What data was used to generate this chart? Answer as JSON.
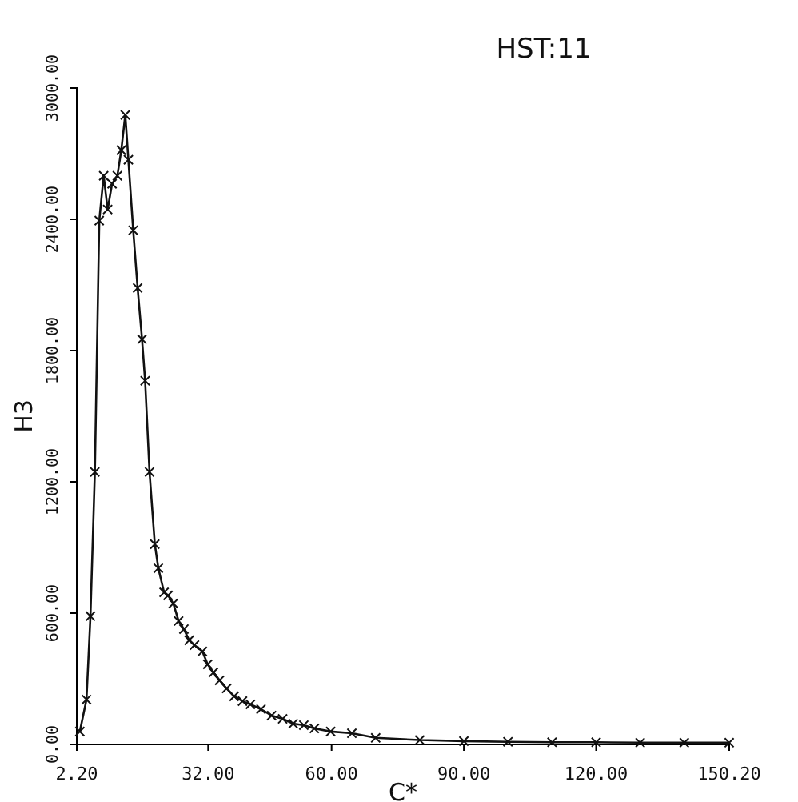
{
  "chart_data": {
    "type": "line",
    "title": "HST:11",
    "xlabel": "C*",
    "ylabel": "H3",
    "x": [
      2.9,
      4.4,
      5.3,
      6.3,
      7.3,
      8.3,
      9.2,
      10.2,
      11.4,
      12.3,
      13.2,
      13.9,
      15.0,
      16.0,
      17.0,
      17.7,
      18.7,
      19.9,
      20.7,
      22.0,
      22.9,
      24.1,
      25.3,
      26.5,
      27.7,
      28.9,
      30.7,
      31.9,
      33.2,
      34.6,
      36.2,
      37.9,
      39.8,
      41.6,
      44.0,
      46.4,
      48.9,
      51.3,
      53.7,
      56.1,
      59.8,
      64.6,
      70,
      80,
      90,
      100,
      110,
      120,
      130,
      140,
      150.2
    ],
    "series": [
      {
        "color": "#111111",
        "values": [
          59,
          205,
          586,
          1245,
          2394,
          2599,
          2445,
          2562,
          2599,
          2716,
          2877,
          2672,
          2350,
          2086,
          1852,
          1662,
          1245,
          915,
          805,
          695,
          681,
          644,
          564,
          527,
          476,
          454,
          425,
          366,
          329,
          293,
          256,
          220,
          198,
          183,
          161,
          132,
          117,
          95,
          88,
          73,
          59,
          51,
          30,
          20,
          15,
          12,
          10,
          10,
          8,
          8,
          8
        ]
      }
    ],
    "xlim": [
      2.2,
      150.2
    ],
    "ylim": [
      0,
      3000
    ],
    "xticks": [
      {
        "value": 2.2,
        "label": "2.20"
      },
      {
        "value": 32,
        "label": "32.00"
      },
      {
        "value": 60,
        "label": "60.00"
      },
      {
        "value": 90,
        "label": "90.00"
      },
      {
        "value": 120,
        "label": "120.00"
      },
      {
        "value": 150.2,
        "label": "150.20"
      }
    ],
    "yticks": [
      {
        "value": 0,
        "label": "0.00"
      },
      {
        "value": 600,
        "label": "600.00"
      },
      {
        "value": 1200,
        "label": "1200.00"
      },
      {
        "value": 1800,
        "label": "1800.00"
      },
      {
        "value": 2400,
        "label": "2400.00"
      },
      {
        "value": 3000,
        "label": "3000.00"
      }
    ],
    "marker": "cross",
    "line_style": "solid"
  }
}
